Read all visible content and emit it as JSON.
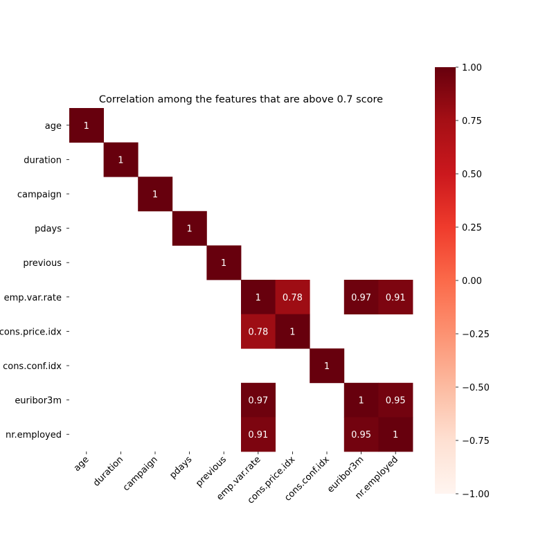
{
  "chart_data": {
    "type": "heatmap",
    "title": "Correlation among the features that are above 0.7 score",
    "labels": [
      "age",
      "duration",
      "campaign",
      "pdays",
      "previous",
      "emp.var.rate",
      "cons.price.idx",
      "cons.conf.idx",
      "euribor3m",
      "nr.employed"
    ],
    "matrix": [
      [
        1,
        null,
        null,
        null,
        null,
        null,
        null,
        null,
        null,
        null
      ],
      [
        null,
        1,
        null,
        null,
        null,
        null,
        null,
        null,
        null,
        null
      ],
      [
        null,
        null,
        1,
        null,
        null,
        null,
        null,
        null,
        null,
        null
      ],
      [
        null,
        null,
        null,
        1,
        null,
        null,
        null,
        null,
        null,
        null
      ],
      [
        null,
        null,
        null,
        null,
        1,
        null,
        null,
        null,
        null,
        null
      ],
      [
        null,
        null,
        null,
        null,
        null,
        1,
        0.78,
        null,
        0.97,
        0.91
      ],
      [
        null,
        null,
        null,
        null,
        null,
        0.78,
        1,
        null,
        null,
        null
      ],
      [
        null,
        null,
        null,
        null,
        null,
        null,
        null,
        1,
        null,
        null
      ],
      [
        null,
        null,
        null,
        null,
        null,
        0.97,
        null,
        null,
        1,
        0.95
      ],
      [
        null,
        null,
        null,
        null,
        null,
        0.91,
        null,
        null,
        0.95,
        1
      ]
    ],
    "colorbar": {
      "range": [
        -1,
        1
      ],
      "ticks": [
        "1.00",
        "0.75",
        "0.50",
        "0.25",
        "0.00",
        "−0.25",
        "−0.50",
        "−0.75",
        "−1.00"
      ],
      "colormap": "Reds"
    }
  }
}
